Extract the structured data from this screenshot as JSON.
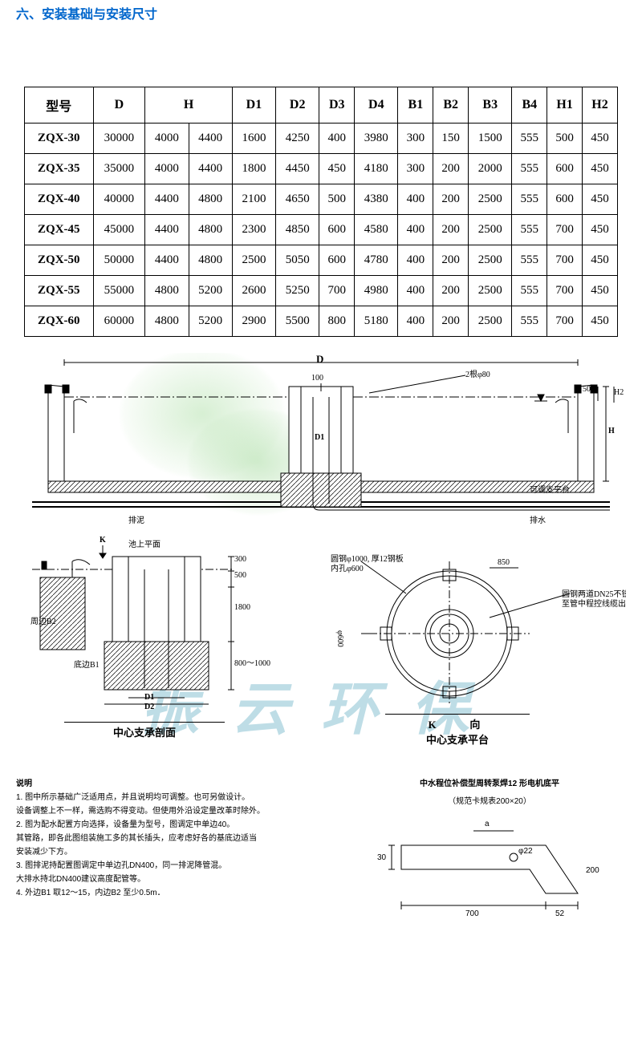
{
  "title": "六、安装基础与安装尺寸",
  "table": {
    "columns": [
      "型号",
      "D",
      "H",
      "D1",
      "D2",
      "D3",
      "D4",
      "B1",
      "B2",
      "B3",
      "B4",
      "H1",
      "H2"
    ],
    "h_split": true,
    "rows": [
      {
        "model": "ZQX-30",
        "D": "30000",
        "Ha": "4000",
        "Hb": "4400",
        "D1": "1600",
        "D2": "4250",
        "D3": "400",
        "D4": "3980",
        "B1": "300",
        "B2": "150",
        "B3": "1500",
        "B4": "555",
        "H1": "500",
        "H2": "450"
      },
      {
        "model": "ZQX-35",
        "D": "35000",
        "Ha": "4000",
        "Hb": "4400",
        "D1": "1800",
        "D2": "4450",
        "D3": "450",
        "D4": "4180",
        "B1": "300",
        "B2": "200",
        "B3": "2000",
        "B4": "555",
        "H1": "600",
        "H2": "450"
      },
      {
        "model": "ZQX-40",
        "D": "40000",
        "Ha": "4400",
        "Hb": "4800",
        "D1": "2100",
        "D2": "4650",
        "D3": "500",
        "D4": "4380",
        "B1": "400",
        "B2": "200",
        "B3": "2500",
        "B4": "555",
        "H1": "600",
        "H2": "450"
      },
      {
        "model": "ZQX-45",
        "D": "45000",
        "Ha": "4400",
        "Hb": "4800",
        "D1": "2300",
        "D2": "4850",
        "D3": "600",
        "D4": "4580",
        "B1": "400",
        "B2": "200",
        "B3": "2500",
        "B4": "555",
        "H1": "700",
        "H2": "450"
      },
      {
        "model": "ZQX-50",
        "D": "50000",
        "Ha": "4400",
        "Hb": "4800",
        "D1": "2500",
        "D2": "5050",
        "D3": "600",
        "D4": "4780",
        "B1": "400",
        "B2": "200",
        "B3": "2500",
        "B4": "555",
        "H1": "700",
        "H2": "450"
      },
      {
        "model": "ZQX-55",
        "D": "55000",
        "Ha": "4800",
        "Hb": "5200",
        "D1": "2600",
        "D2": "5250",
        "D3": "700",
        "D4": "4980",
        "B1": "400",
        "B2": "200",
        "B3": "2500",
        "B4": "555",
        "H1": "700",
        "H2": "450"
      },
      {
        "model": "ZQX-60",
        "D": "60000",
        "Ha": "4800",
        "Hb": "5200",
        "D1": "2900",
        "D2": "5500",
        "D3": "800",
        "D4": "5180",
        "B1": "400",
        "B2": "200",
        "B3": "2500",
        "B4": "555",
        "H1": "700",
        "H2": "450"
      }
    ]
  },
  "diagram": {
    "top_dim": "D",
    "v100": "100",
    "h500": "500",
    "h_label": "H",
    "h2_label": "H2",
    "pipe_note": "2根φ80",
    "d1_label": "D1",
    "left_annot": "排泥",
    "right_annot": "排水",
    "right_annot2": "可调支平台",
    "section_k": "K",
    "section_k_arrow": "↓",
    "water_surface": "池上平面",
    "v300": "300",
    "v500": "500",
    "v1800": "1800",
    "v800_1000": "800～1000",
    "b2_label": "周边B2",
    "b1_label": "底边B1",
    "d1_label2": "D1",
    "d2_label": "D2",
    "section_title": "中心支承剖面",
    "plan_k": "K",
    "plan_k_dir": "向",
    "plan_title": "中心支承平台",
    "flange_note1": "圆钢φ1000, 厚12钢板",
    "flange_note2": "内孔φ600",
    "cable_note1": "圆钢两道DN25不锈钢电线管",
    "cable_note2": "至管中程控线缆出",
    "plan_850": "850",
    "plan_600": "φ600"
  },
  "watermark": "振云环保",
  "notes": {
    "header": "说明",
    "lines": [
      "1. 图中所示基础广泛适用点，并且说明均可调整。也可另做设计。",
      "  设备调整上不一样，需选购不得变动。但使用外沿设定量改革时除外。",
      "2. 图为配水配置方向选择，设备量为型号，图调定中单边40。",
      "  其管路，即各此图组装施工多的其长插头，应考虑好各的基底边适当",
      "  安装减少下方。",
      "3. 图排泥持配置图调定中单边孔DN400，同一排泥降管混。",
      "  大排水持北DN400建议高度配管等。",
      "4. 外边B1 取12～15，内边B2 至少0.5m．"
    ],
    "right_title": "中水程位补偿型周转泵焊12 形电机底平",
    "right_sub": "（规范卡规表200×20）",
    "right_dims": {
      "a": "a",
      "t30": "30",
      "t700": "700",
      "t52": "52",
      "phi22": "φ22",
      "v200": "200"
    }
  },
  "colors": {
    "title": "#0066cc",
    "border": "#000000",
    "watermark_text": "rgba(110,180,200,0.45)",
    "leaf1": "rgba(140,210,130,0.35)",
    "leaf2": "rgba(120,200,110,0.35)"
  }
}
